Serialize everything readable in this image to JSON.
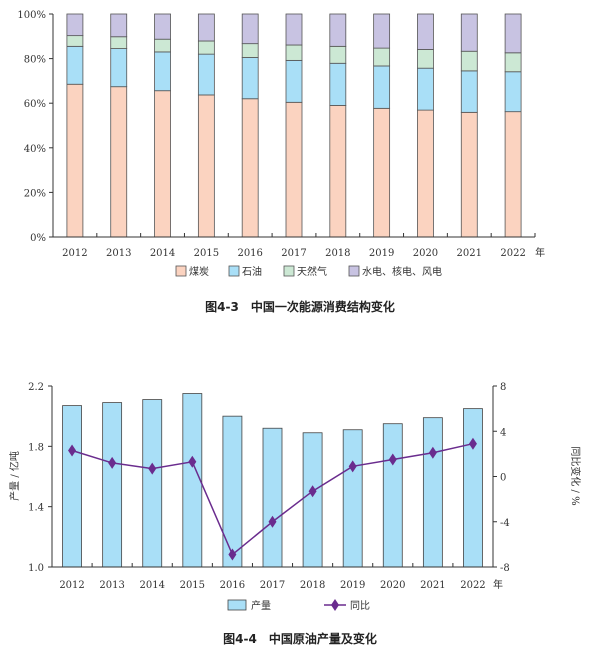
{
  "chart_data": [
    {
      "type": "bar",
      "stacked": true,
      "title": "图4-3　中国一次能源消费结构变化",
      "categories": [
        "2012",
        "2013",
        "2014",
        "2015",
        "2016",
        "2017",
        "2018",
        "2019",
        "2020",
        "2021",
        "2022"
      ],
      "x_unit": "年",
      "ylim": [
        0,
        100
      ],
      "yticks": [
        "0%",
        "20%",
        "40%",
        "60%",
        "80%",
        "100%"
      ],
      "legend_position": "bottom",
      "series": [
        {
          "name": "煤炭",
          "color": "#fbd3c0",
          "values": [
            68.5,
            67.4,
            65.6,
            63.7,
            62.0,
            60.4,
            59.0,
            57.7,
            56.9,
            55.9,
            56.2
          ]
        },
        {
          "name": "石油",
          "color": "#a9dff7",
          "values": [
            17.0,
            17.1,
            17.4,
            18.3,
            18.5,
            18.8,
            18.9,
            19.0,
            18.8,
            18.6,
            17.9
          ]
        },
        {
          "name": "天然气",
          "color": "#cce8d4",
          "values": [
            4.8,
            5.3,
            5.7,
            5.9,
            6.2,
            6.9,
            7.6,
            8.0,
            8.4,
            8.8,
            8.5
          ]
        },
        {
          "name": "水电、核电、风电",
          "color": "#c8c3e2",
          "values": [
            9.7,
            10.2,
            11.3,
            12.1,
            13.3,
            13.9,
            14.5,
            15.3,
            15.9,
            16.7,
            17.4
          ]
        }
      ]
    },
    {
      "type": "bar+line",
      "title": "图4-4　中国原油产量及变化",
      "categories": [
        "2012",
        "2013",
        "2014",
        "2015",
        "2016",
        "2017",
        "2018",
        "2019",
        "2020",
        "2021",
        "2022"
      ],
      "x_unit": "年",
      "ylabel": "产量 / 亿吨",
      "ylabel_right": "同比变化 / %",
      "ylim": [
        1.0,
        2.2
      ],
      "yticks": [
        "1.0",
        "1.4",
        "1.8",
        "2.2"
      ],
      "ylim_right": [
        -8,
        8
      ],
      "yticks_right": [
        "-8",
        "-4",
        "0",
        "4",
        "8"
      ],
      "legend_position": "bottom",
      "series": [
        {
          "name": "产量",
          "kind": "bar",
          "axis": "left",
          "color": "#a9dff7",
          "values": [
            2.07,
            2.09,
            2.11,
            2.15,
            2.0,
            1.92,
            1.89,
            1.91,
            1.95,
            1.99,
            2.05
          ]
        },
        {
          "name": "同比",
          "kind": "line",
          "axis": "right",
          "color": "#6a2c8e",
          "values": [
            2.3,
            1.2,
            0.7,
            1.3,
            -6.9,
            -4.0,
            -1.3,
            0.9,
            1.5,
            2.1,
            2.9
          ]
        }
      ]
    }
  ]
}
